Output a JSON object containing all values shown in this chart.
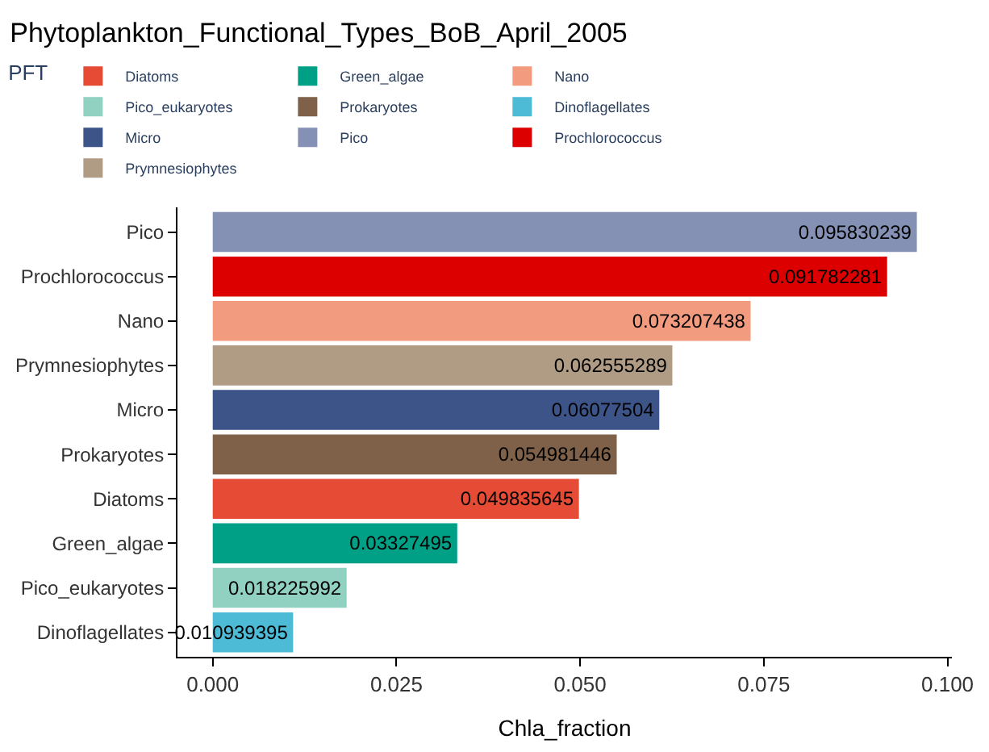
{
  "chart_data": {
    "type": "bar",
    "orientation": "horizontal",
    "title": "Phytoplankton_Functional_Types_BoB_April_2005",
    "xlabel": "Chla_fraction",
    "legend_title": "PFT",
    "legend": "top",
    "data_labels": true,
    "categories": [
      "Pico",
      "Prochlorococcus",
      "Nano",
      "Prymnesiophytes",
      "Micro",
      "Prokaryotes",
      "Diatoms",
      "Green_algae",
      "Pico_eukaryotes",
      "Dinoflagellates"
    ],
    "xlim": [
      -0.0048,
      0.1006
    ],
    "xticks": [
      {
        "value": 0,
        "label": "0.000"
      },
      0.025,
      {
        "value": 0.05,
        "label": "0.050"
      },
      0.075,
      {
        "value": 0.1,
        "label": "0.100"
      }
    ],
    "series": [
      {
        "name": "Diatoms",
        "color": "#e64b35",
        "values": [
          null,
          null,
          null,
          null,
          null,
          null,
          0.049835645,
          null,
          null,
          null
        ]
      },
      {
        "name": "Green_algae",
        "color": "#00a087",
        "values": [
          null,
          null,
          null,
          null,
          null,
          null,
          null,
          0.03327495,
          null,
          null
        ]
      },
      {
        "name": "Nano",
        "color": "#f39b7f",
        "values": [
          null,
          null,
          0.073207438,
          null,
          null,
          null,
          null,
          null,
          null,
          null
        ]
      },
      {
        "name": "Pico_eukaryotes",
        "color": "#91d1c2",
        "values": [
          null,
          null,
          null,
          null,
          null,
          null,
          null,
          null,
          0.018225992,
          null
        ]
      },
      {
        "name": "Prokaryotes",
        "color": "#7e6148",
        "values": [
          null,
          null,
          null,
          null,
          null,
          0.054981446,
          null,
          null,
          null,
          null
        ]
      },
      {
        "name": "Dinoflagellates",
        "color": "#4dbbd5",
        "values": [
          null,
          null,
          null,
          null,
          null,
          null,
          null,
          null,
          null,
          0.010939395
        ]
      },
      {
        "name": "Micro",
        "color": "#3c5488",
        "values": [
          null,
          null,
          null,
          null,
          0.06077504,
          null,
          null,
          null,
          null,
          null
        ]
      },
      {
        "name": "Pico",
        "color": "#8491b4",
        "values": [
          0.095830239,
          null,
          null,
          null,
          null,
          null,
          null,
          null,
          null,
          null
        ]
      },
      {
        "name": "Prochlorococcus",
        "color": "#dc0000",
        "values": [
          null,
          0.091782281,
          null,
          null,
          null,
          null,
          null,
          null,
          null,
          null
        ]
      },
      {
        "name": "Prymnesiophytes",
        "color": "#b09c85",
        "values": [
          null,
          null,
          null,
          0.062555289,
          null,
          null,
          null,
          null,
          null,
          null
        ]
      }
    ]
  }
}
